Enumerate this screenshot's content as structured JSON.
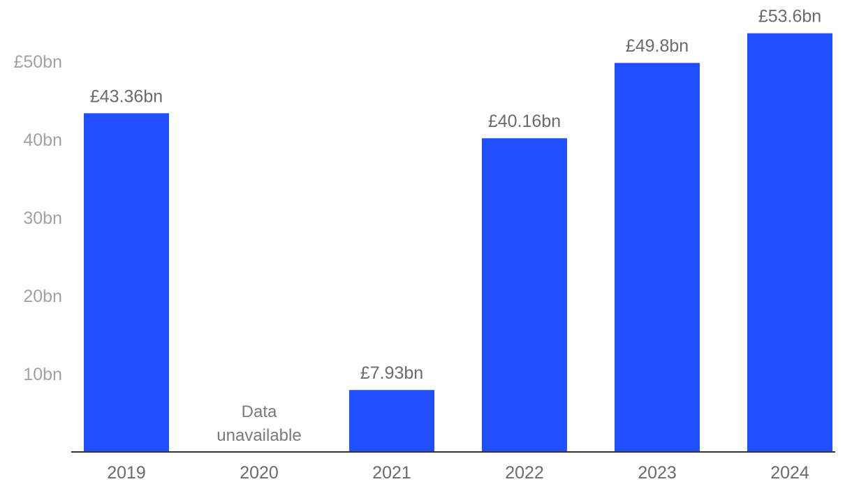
{
  "chart_data": {
    "type": "bar",
    "title": "",
    "xlabel": "",
    "ylabel": "",
    "categories": [
      "2019",
      "2020",
      "2021",
      "2022",
      "2023",
      "2024"
    ],
    "values": [
      43.36,
      null,
      7.93,
      40.16,
      49.8,
      53.6
    ],
    "value_labels": [
      "£43.36bn",
      "",
      "£7.93bn",
      "£40.16bn",
      "£49.8bn",
      "£53.6bn"
    ],
    "missing_labels": [
      {
        "category": "2020",
        "lines": [
          "Data",
          "unavailable"
        ]
      }
    ],
    "ylim": [
      0,
      55
    ],
    "yticks": [
      {
        "value": 10,
        "label": "10bn"
      },
      {
        "value": 20,
        "label": "20bn"
      },
      {
        "value": 30,
        "label": "30bn"
      },
      {
        "value": 40,
        "label": "40bn"
      },
      {
        "value": 50,
        "label": "£50bn"
      }
    ],
    "grid": false,
    "legend": "none",
    "colors": {
      "bar": "#1f4fff",
      "axis": "#333333"
    }
  }
}
